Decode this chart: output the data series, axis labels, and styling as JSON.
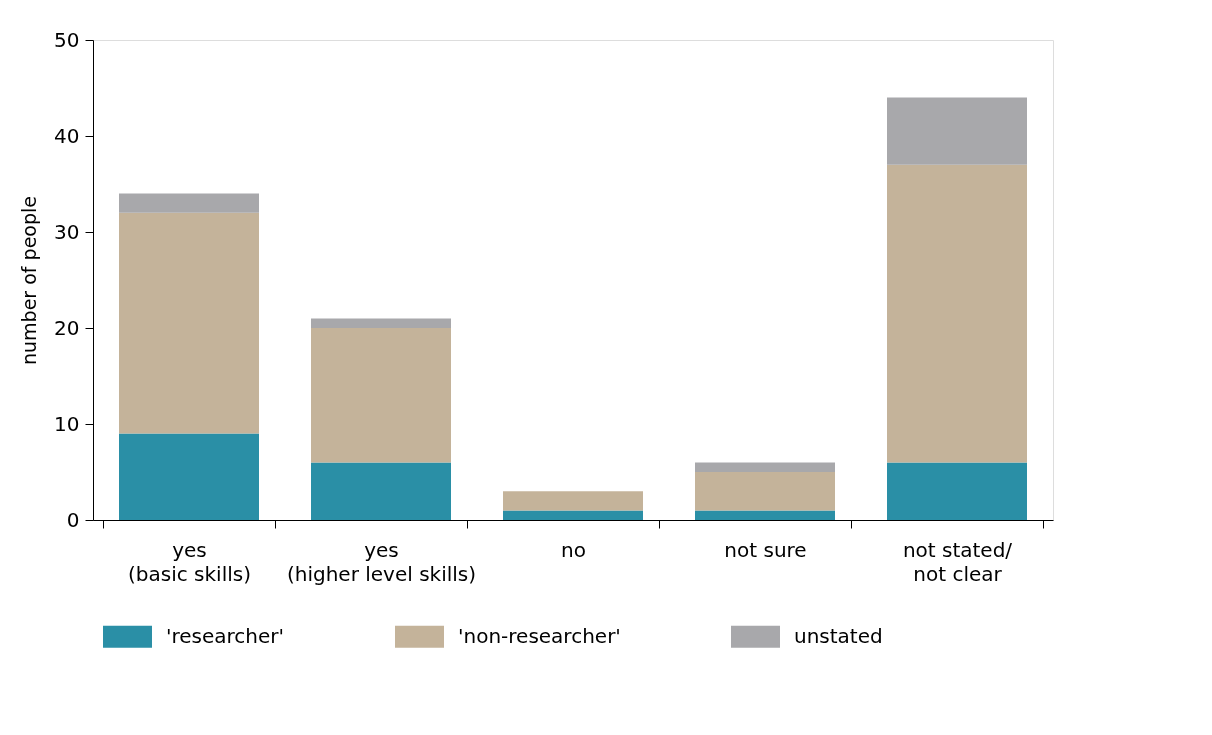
{
  "chart_data": {
    "type": "bar",
    "ylabel": "number of people",
    "categories": [
      "yes\n(basic skills)",
      "yes\n(higher level skills)",
      "no",
      "not sure",
      "not stated/\nnot clear"
    ],
    "stacked": true,
    "series": [
      {
        "name": "'researcher'",
        "color": "#2a8fa6",
        "values": [
          9,
          6,
          1,
          1,
          6
        ]
      },
      {
        "name": "'non-researcher'",
        "color": "#c4b39a",
        "values": [
          23,
          14,
          2,
          4,
          31
        ]
      },
      {
        "name": "unstated",
        "color": "#a8a8ab",
        "values": [
          2,
          1,
          0,
          1,
          7
        ]
      }
    ],
    "ylim": [
      0,
      50
    ],
    "yticks": [
      0,
      10,
      20,
      30,
      40,
      50
    ],
    "grid": false,
    "legend": "bottom"
  }
}
